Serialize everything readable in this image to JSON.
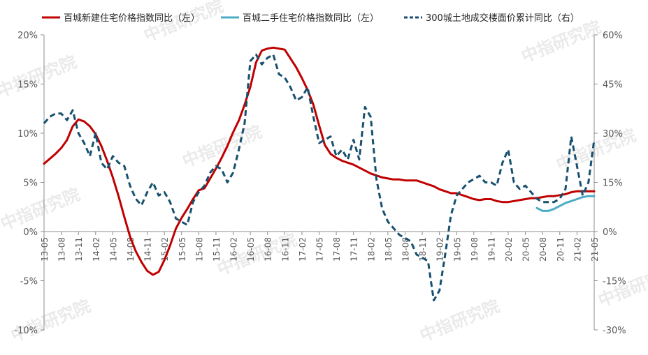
{
  "watermark": "中指研究院",
  "chart_data": {
    "type": "line",
    "x": [
      "13-05",
      "13-06",
      "13-07",
      "13-08",
      "13-09",
      "13-10",
      "13-11",
      "13-12",
      "14-01",
      "14-02",
      "14-03",
      "14-04",
      "14-05",
      "14-06",
      "14-07",
      "14-08",
      "14-09",
      "14-10",
      "14-11",
      "14-12",
      "15-01",
      "15-02",
      "15-03",
      "15-04",
      "15-05",
      "15-06",
      "15-07",
      "15-08",
      "15-09",
      "15-10",
      "15-11",
      "15-12",
      "16-01",
      "16-02",
      "16-03",
      "16-04",
      "16-05",
      "16-06",
      "16-07",
      "16-08",
      "16-09",
      "16-10",
      "16-11",
      "16-12",
      "17-01",
      "17-02",
      "17-03",
      "17-04",
      "17-05",
      "17-06",
      "17-07",
      "17-08",
      "17-09",
      "17-10",
      "17-11",
      "17-12",
      "18-01",
      "18-02",
      "18-03",
      "18-04",
      "18-05",
      "18-06",
      "18-07",
      "18-08",
      "18-09",
      "18-10",
      "18-11",
      "18-12",
      "19-01",
      "19-02",
      "19-03",
      "19-04",
      "19-05",
      "19-06",
      "19-07",
      "19-08",
      "19-09",
      "19-10",
      "19-11",
      "19-12",
      "20-01",
      "20-02",
      "20-03",
      "20-04",
      "20-05",
      "20-06",
      "20-07",
      "20-08",
      "20-09",
      "20-10",
      "20-11",
      "20-12",
      "21-01",
      "21-02",
      "21-03",
      "21-04",
      "21-05"
    ],
    "x_tick_labels": [
      "13-05",
      "13-08",
      "13-11",
      "14-02",
      "14-05",
      "14-08",
      "14-11",
      "15-02",
      "15-05",
      "15-08",
      "15-11",
      "16-02",
      "16-05",
      "16-08",
      "16-11",
      "17-02",
      "17-05",
      "17-08",
      "17-11",
      "18-02",
      "18-05",
      "18-08",
      "18-11",
      "19-02",
      "19-05",
      "19-08",
      "19-11",
      "20-02",
      "20-05",
      "20-08",
      "20-11",
      "21-02",
      "21-05"
    ],
    "y_left": {
      "ticks": [
        "-10%",
        "-5%",
        "0%",
        "5%",
        "10%",
        "15%",
        "20%"
      ],
      "min": -10,
      "max": 20,
      "step": 5
    },
    "y_right": {
      "ticks": [
        "-30%",
        "-15%",
        "0%",
        "15%",
        "30%",
        "45%",
        "60%"
      ],
      "min": -30,
      "max": 60,
      "step": 15
    },
    "series": [
      {
        "name": "百城新建住宅价格指数同比（左）",
        "axis": "left",
        "color": "#c00000",
        "style": "solid",
        "values": [
          6.9,
          7.4,
          7.9,
          8.5,
          9.3,
          10.7,
          11.4,
          11.2,
          10.7,
          9.9,
          8.7,
          7.2,
          5.5,
          3.6,
          1.5,
          -0.5,
          -2.0,
          -3.1,
          -4.0,
          -4.4,
          -4.1,
          -2.9,
          -1.4,
          0.3,
          1.4,
          2.3,
          3.3,
          4.2,
          4.4,
          5.4,
          6.4,
          7.5,
          8.7,
          10.1,
          11.3,
          12.9,
          14.7,
          17.2,
          18.4,
          18.6,
          18.7,
          18.6,
          18.5,
          17.6,
          16.7,
          15.6,
          14.4,
          12.9,
          10.8,
          8.8,
          7.9,
          7.5,
          7.2,
          7.0,
          6.8,
          6.5,
          6.2,
          5.9,
          5.7,
          5.5,
          5.4,
          5.3,
          5.3,
          5.2,
          5.2,
          5.2,
          5.0,
          4.8,
          4.6,
          4.3,
          4.1,
          3.9,
          3.9,
          3.7,
          3.5,
          3.3,
          3.2,
          3.3,
          3.3,
          3.1,
          3.0,
          3.0,
          3.1,
          3.2,
          3.3,
          3.4,
          3.4,
          3.5,
          3.6,
          3.6,
          3.7,
          3.8,
          4.0,
          4.1,
          4.1,
          4.1,
          4.1
        ]
      },
      {
        "name": "百城二手住宅价格指数同比（左）",
        "axis": "left",
        "color": "#4bacc6",
        "style": "solid",
        "values": [
          null,
          null,
          null,
          null,
          null,
          null,
          null,
          null,
          null,
          null,
          null,
          null,
          null,
          null,
          null,
          null,
          null,
          null,
          null,
          null,
          null,
          null,
          null,
          null,
          null,
          null,
          null,
          null,
          null,
          null,
          null,
          null,
          null,
          null,
          null,
          null,
          null,
          null,
          null,
          null,
          null,
          null,
          null,
          null,
          null,
          null,
          null,
          null,
          null,
          null,
          null,
          null,
          null,
          null,
          null,
          null,
          null,
          null,
          null,
          null,
          null,
          null,
          null,
          null,
          null,
          null,
          null,
          null,
          null,
          null,
          null,
          null,
          null,
          null,
          null,
          null,
          null,
          null,
          null,
          null,
          null,
          null,
          null,
          null,
          null,
          null,
          2.4,
          2.1,
          2.1,
          2.3,
          2.6,
          2.9,
          3.1,
          3.3,
          3.5,
          3.6,
          3.6
        ]
      },
      {
        "name": "300城土地成交楼面价累计同比（右）",
        "axis": "right",
        "color": "#17506e",
        "style": "dashed",
        "values": [
          33,
          35,
          36,
          36,
          34,
          37,
          30,
          27,
          23,
          30,
          21,
          19,
          23,
          21,
          20,
          14,
          10,
          8,
          12,
          15,
          11,
          12,
          9,
          4,
          3,
          2,
          9,
          12,
          14,
          18,
          20,
          19,
          15,
          18,
          25,
          33,
          52,
          54,
          51,
          53,
          54,
          48,
          47,
          44,
          40,
          41,
          44,
          35,
          27,
          28,
          29,
          23,
          25,
          22,
          28,
          22,
          38,
          35,
          16,
          7,
          3,
          1,
          -1,
          -2,
          -3,
          -7,
          -8,
          -9,
          -21,
          -18,
          -7,
          5,
          11,
          13,
          15,
          16,
          17,
          15,
          15,
          14,
          21,
          25,
          15,
          13,
          14,
          12,
          10,
          9,
          9,
          9,
          10,
          13,
          29,
          20,
          11,
          15,
          28
        ]
      }
    ],
    "title": "",
    "xlabel": "",
    "ylabel": "",
    "grid": false,
    "legend_placement": "top"
  }
}
